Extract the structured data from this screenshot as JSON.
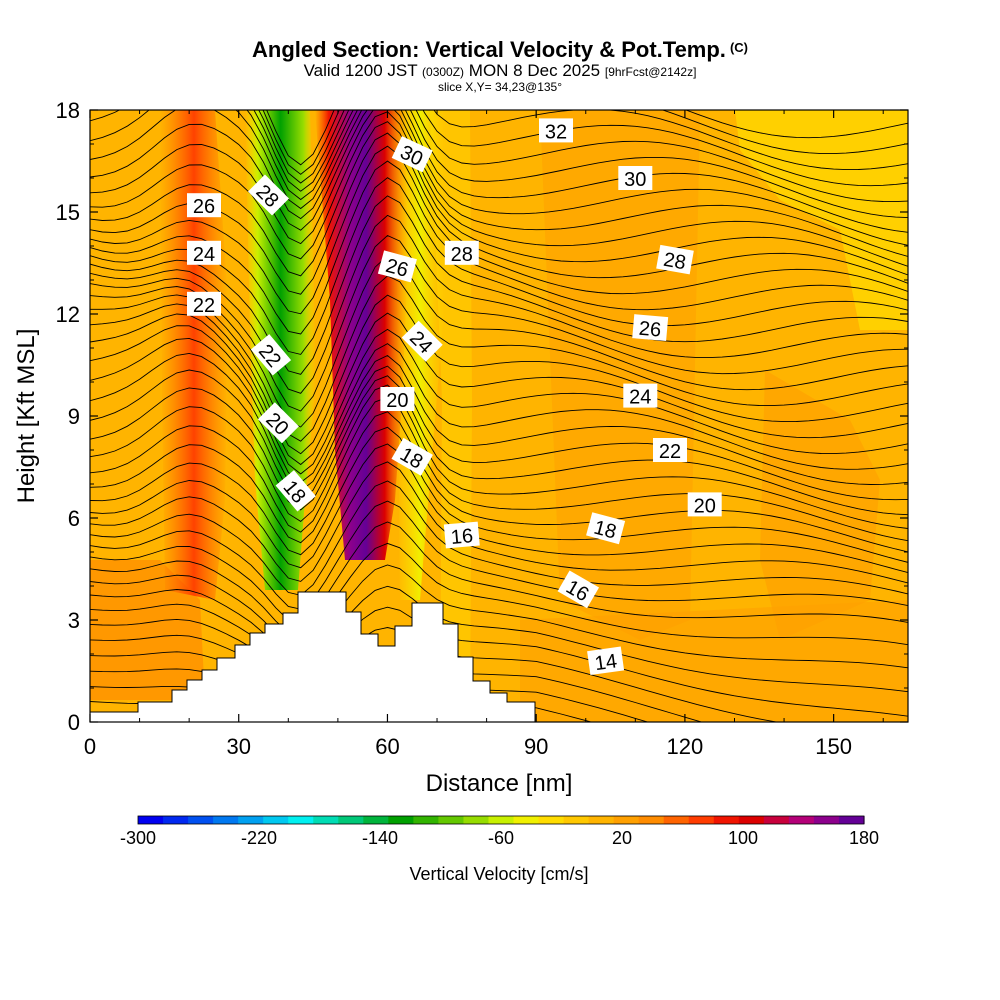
{
  "header": {
    "title": "Angled Section: Vertical Velocity & Pot.Temp.",
    "units_mark": "(C)",
    "valid_prefix": "Valid 1200 JST",
    "valid_utc": "(0300Z)",
    "valid_date": "MON 8 Dec 2025",
    "forecast": "[9hrFcst@2142z]",
    "slice": "slice X,Y= 34,23@135°"
  },
  "chart_data": {
    "type": "heatmap",
    "xlabel": "Distance [nm]",
    "ylabel": "Height [Kft MSL]",
    "xlim": [
      0,
      165
    ],
    "ylim": [
      0,
      18
    ],
    "x_ticks": [
      0,
      30,
      60,
      90,
      120,
      150
    ],
    "y_ticks": [
      0,
      3,
      6,
      9,
      12,
      15,
      18
    ],
    "colorbar": {
      "label": "Vertical Velocity [cm/s]",
      "min": -300,
      "max": 180,
      "step": 20,
      "tick_labels": [
        -300,
        -220,
        -140,
        -60,
        20,
        100,
        180
      ],
      "colors": [
        "#0000f0",
        "#0028f0",
        "#0050f0",
        "#0078f0",
        "#00a0f0",
        "#00c8f0",
        "#00f0f0",
        "#00dcb4",
        "#00c878",
        "#00b43c",
        "#00a000",
        "#32b400",
        "#64c800",
        "#96dc00",
        "#c8f000",
        "#f0f000",
        "#ffdc00",
        "#ffc800",
        "#ffb400",
        "#ffa000",
        "#ff8c00",
        "#ff6400",
        "#ff3c00",
        "#f01400",
        "#dc0000",
        "#c8003c",
        "#b40078",
        "#8c008c",
        "#640096"
      ]
    },
    "theta_contours_C": [
      {
        "value": 14,
        "pos": [
          104,
          1.8
        ],
        "angle": -8
      },
      {
        "value": 16,
        "pos": [
          75,
          5.5
        ],
        "angle": -5
      },
      {
        "value": 16,
        "pos": [
          98.5,
          3.9
        ],
        "angle": 30
      },
      {
        "value": 18,
        "pos": [
          41.5,
          6.8
        ],
        "angle": 50
      },
      {
        "value": 18,
        "pos": [
          65,
          7.8
        ],
        "angle": 30
      },
      {
        "value": 18,
        "pos": [
          104,
          5.7
        ],
        "angle": 15
      },
      {
        "value": 20,
        "pos": [
          38,
          8.8
        ],
        "angle": 45
      },
      {
        "value": 20,
        "pos": [
          62,
          9.5
        ],
        "angle": 0
      },
      {
        "value": 20,
        "pos": [
          124,
          6.4
        ],
        "angle": 0
      },
      {
        "value": 22,
        "pos": [
          23,
          12.3
        ],
        "angle": 0
      },
      {
        "value": 22,
        "pos": [
          36.5,
          10.8
        ],
        "angle": 50
      },
      {
        "value": 22,
        "pos": [
          117,
          8.0
        ],
        "angle": 0
      },
      {
        "value": 24,
        "pos": [
          23,
          13.8
        ],
        "angle": 0
      },
      {
        "value": 24,
        "pos": [
          67,
          11.2
        ],
        "angle": 45
      },
      {
        "value": 24,
        "pos": [
          111,
          9.6
        ],
        "angle": 0
      },
      {
        "value": 26,
        "pos": [
          23,
          15.2
        ],
        "angle": 0
      },
      {
        "value": 26,
        "pos": [
          62,
          13.4
        ],
        "angle": 15
      },
      {
        "value": 26,
        "pos": [
          113,
          11.6
        ],
        "angle": 5
      },
      {
        "value": 28,
        "pos": [
          36,
          15.5
        ],
        "angle": 45
      },
      {
        "value": 28,
        "pos": [
          75,
          13.8
        ],
        "angle": 0
      },
      {
        "value": 28,
        "pos": [
          118,
          13.6
        ],
        "angle": 10
      },
      {
        "value": 30,
        "pos": [
          65,
          16.7
        ],
        "angle": 25
      },
      {
        "value": 30,
        "pos": [
          110,
          16.0
        ],
        "angle": 0
      },
      {
        "value": 32,
        "pos": [
          94,
          17.4
        ],
        "angle": 0
      }
    ],
    "terrain_max_kft": 3.9,
    "terrain_peak_distance_nm": 48
  }
}
